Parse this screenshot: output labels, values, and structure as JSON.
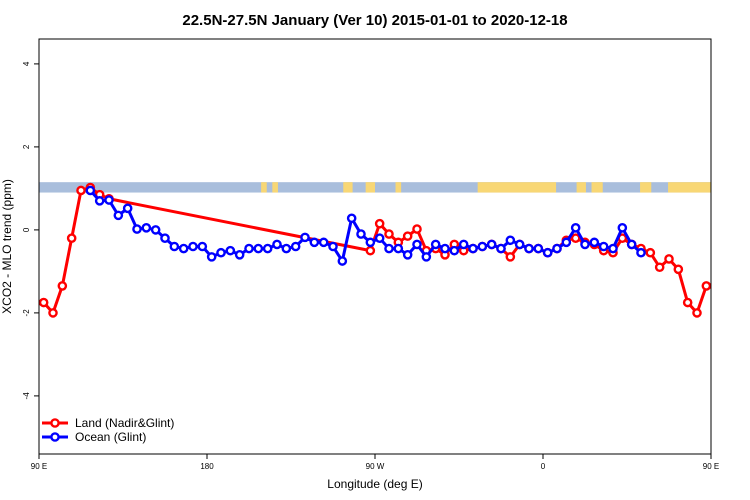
{
  "chart_data": {
    "type": "line",
    "title": "22.5N-27.5N January (Ver 10)   2015-01-01 to 2020-12-18",
    "xlabel": "Longitude (deg E)",
    "ylabel": "XCO2 - MLO trend (ppm)",
    "xlim": [
      90,
      450
    ],
    "ylim": [
      -5.4,
      4.6
    ],
    "x_ticks": [
      {
        "value": 90,
        "label": "90 E"
      },
      {
        "value": 180,
        "label": "180"
      },
      {
        "value": 270,
        "label": "90 W"
      },
      {
        "value": 360,
        "label": "0"
      },
      {
        "value": 450,
        "label": "90 E"
      },
      {
        "value": 540,
        "label": "180"
      }
    ],
    "y_ticks": [
      {
        "value": -4,
        "label": "-4"
      },
      {
        "value": -2,
        "label": "-2"
      },
      {
        "value": 0,
        "label": "0"
      },
      {
        "value": 2,
        "label": "2"
      },
      {
        "value": 4,
        "label": "4"
      }
    ],
    "grid": false,
    "legend_position": "bottom-left",
    "land_band": {
      "y_low": 0.9,
      "y_high": 1.15,
      "ocean_color": "#a9bedc",
      "land_color": "#f8d775"
    },
    "land_segments": [
      [
        209,
        212
      ],
      [
        215,
        218
      ],
      [
        253,
        258
      ],
      [
        265,
        270
      ],
      [
        281,
        284
      ],
      [
        325,
        367
      ],
      [
        378,
        383
      ],
      [
        386,
        392
      ],
      [
        412,
        418
      ],
      [
        427,
        450
      ]
    ],
    "series": [
      {
        "name": "Land (Nadir&Glint)",
        "color": "#ff0000",
        "x": [
          92.5,
          97.5,
          102.5,
          107.5,
          112.5,
          117.5,
          122.5,
          127.5,
          267.5,
          272.5,
          277.5,
          282.5,
          287.5,
          292.5,
          297.5,
          302.5,
          307.5,
          312.5,
          317.5,
          322.5,
          327.5,
          332.5,
          337.5,
          342.5,
          347.5,
          352.5,
          357.5,
          362.5,
          367.5,
          372.5,
          377.5,
          382.5,
          387.5,
          392.5,
          397.5,
          402.5,
          407.5,
          412.5,
          417.5,
          422.5,
          427.5,
          432.5,
          437.5,
          442.5,
          447.5
        ],
        "values": [
          -1.75,
          -2.0,
          -1.35,
          -0.2,
          0.95,
          1.02,
          0.85,
          0.75,
          -0.5,
          0.15,
          -0.1,
          -0.3,
          -0.15,
          0.02,
          -0.5,
          -0.45,
          -0.6,
          -0.35,
          -0.5,
          -0.45,
          -0.4,
          -0.35,
          -0.45,
          -0.65,
          -0.35,
          -0.45,
          -0.45,
          -0.55,
          -0.45,
          -0.25,
          -0.2,
          -0.3,
          -0.35,
          -0.5,
          -0.55,
          -0.2,
          -0.35,
          -0.45,
          -0.55,
          -0.9,
          -0.7,
          -0.95,
          -1.75,
          -2.0,
          -1.35
        ]
      },
      {
        "name": "Ocean (Glint)",
        "color": "#0000ff",
        "x": [
          117.5,
          122.5,
          127.5,
          132.5,
          137.5,
          142.5,
          147.5,
          152.5,
          157.5,
          162.5,
          167.5,
          172.5,
          177.5,
          182.5,
          187.5,
          192.5,
          197.5,
          202.5,
          207.5,
          212.5,
          217.5,
          222.5,
          227.5,
          232.5,
          237.5,
          242.5,
          247.5,
          252.5,
          257.5,
          262.5,
          267.5,
          272.5,
          277.5,
          282.5,
          287.5,
          292.5,
          297.5,
          302.5,
          307.5,
          312.5,
          317.5,
          322.5,
          327.5,
          332.5,
          337.5,
          342.5,
          347.5,
          352.5,
          357.5,
          362.5,
          367.5,
          372.5,
          377.5,
          382.5,
          387.5,
          392.5,
          397.5,
          402.5,
          407.5,
          412.5
        ],
        "values": [
          0.95,
          0.7,
          0.72,
          0.35,
          0.52,
          0.02,
          0.05,
          0.0,
          -0.2,
          -0.4,
          -0.45,
          -0.4,
          -0.4,
          -0.65,
          -0.55,
          -0.5,
          -0.6,
          -0.45,
          -0.45,
          -0.45,
          -0.35,
          -0.45,
          -0.4,
          -0.18,
          -0.3,
          -0.3,
          -0.4,
          -0.75,
          0.28,
          -0.1,
          -0.3,
          -0.2,
          -0.45,
          -0.45,
          -0.6,
          -0.35,
          -0.65,
          -0.35,
          -0.45,
          -0.5,
          -0.35,
          -0.45,
          -0.4,
          -0.35,
          -0.45,
          -0.25,
          -0.35,
          -0.45,
          -0.45,
          -0.55,
          -0.45,
          -0.3,
          0.05,
          -0.35,
          -0.3,
          -0.4,
          -0.45,
          0.05,
          -0.35,
          -0.55
        ]
      }
    ]
  }
}
